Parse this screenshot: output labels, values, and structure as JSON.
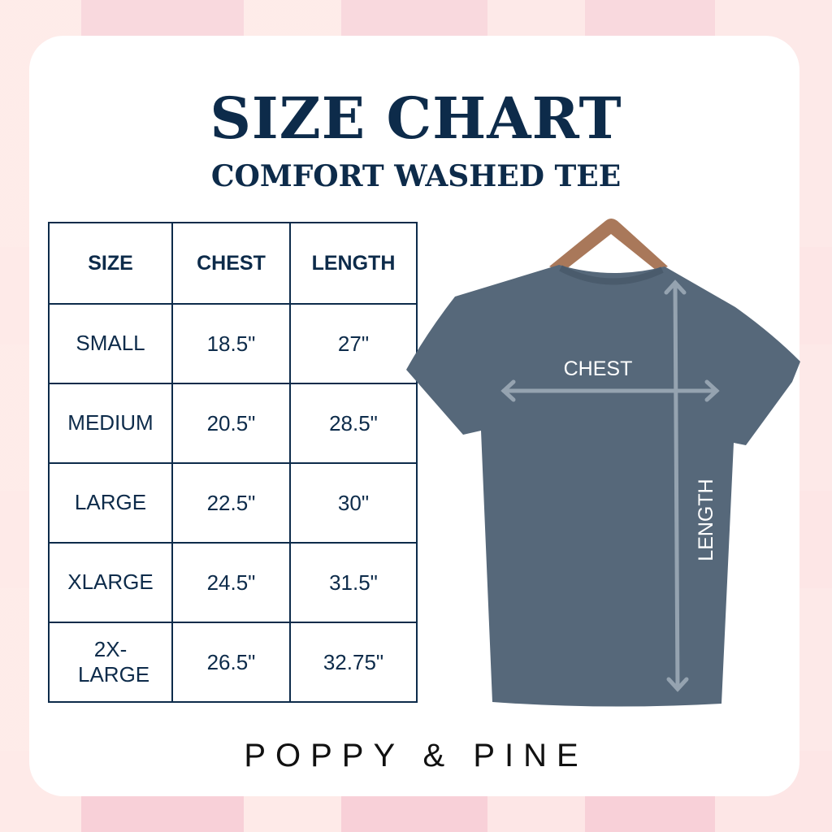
{
  "title": "SIZE CHART",
  "subtitle": "COMFORT WASHED TEE",
  "table": {
    "headers": [
      "SIZE",
      "CHEST",
      "LENGTH"
    ],
    "rows": [
      [
        "SMALL",
        "18.5\"",
        "27\""
      ],
      [
        "MEDIUM",
        "20.5\"",
        "28.5\""
      ],
      [
        "LARGE",
        "22.5\"",
        "30\""
      ],
      [
        "XLARGE",
        "24.5\"",
        "31.5\""
      ],
      [
        "2X-LARGE",
        "26.5\"",
        "32.75\""
      ]
    ]
  },
  "diagram": {
    "chest_label": "CHEST",
    "length_label": "LENGTH"
  },
  "brand": "POPPY & PINE",
  "colors": {
    "navy": "#0d2b4a",
    "tee": "#56687a",
    "background_pink": "#f9d9de"
  }
}
